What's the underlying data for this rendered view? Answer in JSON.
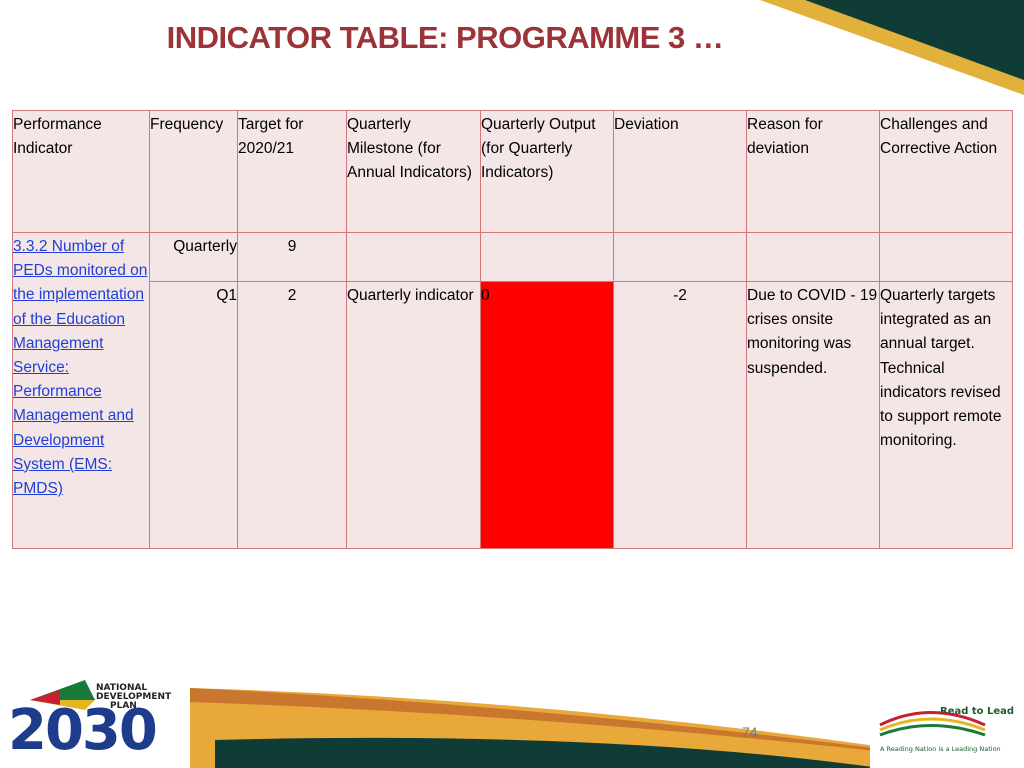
{
  "title": "INDICATOR TABLE: PROGRAMME 3 …",
  "table": {
    "header": [
      "Performance Indicator",
      "Frequency",
      "Target for 2020/21",
      "Quarterly Milestone (for Annual Indicators)",
      "Quarterly Output (for Quarterly Indicators)",
      "Deviation",
      "Reason for deviation",
      "Challenges and Corrective Action"
    ],
    "indicator": "3.3.2 Number of PEDs monitored on the implementation of the Education Management Service: Performance Management and Development System (EMS: PMDS)",
    "annual": {
      "frequency": "Quarterly",
      "target": "9"
    },
    "quarter": {
      "frequency": "Q1",
      "target": "2",
      "milestone": "Quarterly indicator",
      "output": "0",
      "deviation": "-2",
      "reason": "Due to COVID - 19 crises onsite monitoring was suspended.",
      "challenges": "Quarterly targets integrated as an annual target. Technical indicators revised to support remote monitoring."
    }
  },
  "page_number": "74",
  "logo_left": {
    "line1": "NATIONAL",
    "line2": "DEVELOPMENT",
    "line3": "PLAN",
    "year": "2030"
  },
  "logo_right": {
    "title": "Read to Lead",
    "tagline": "A Reading Nation is a Leading Nation"
  }
}
